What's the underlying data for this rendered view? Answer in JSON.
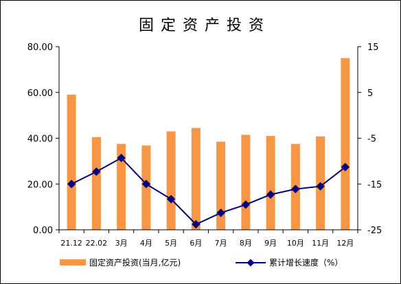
{
  "chart_data": {
    "type": "bar+line",
    "title": "固定资产投资",
    "categories": [
      "21.12",
      "22.02",
      "3月",
      "4月",
      "5月",
      "6月",
      "7月",
      "8月",
      "9月",
      "10月",
      "11月",
      "12月"
    ],
    "series": [
      {
        "name": "固定资产投资(当月,亿元)",
        "type": "bar",
        "axis": "left",
        "color": "#F79646",
        "values": [
          59.0,
          40.5,
          37.5,
          36.8,
          43.0,
          44.5,
          38.5,
          41.5,
          41.0,
          37.5,
          40.8,
          75.0
        ]
      },
      {
        "name": "累计增长速度（%）",
        "type": "line",
        "axis": "right",
        "color": "#000080",
        "values": [
          -15.0,
          -12.3,
          -9.3,
          -15.0,
          -18.3,
          -23.8,
          -21.3,
          -19.5,
          -17.3,
          -16.1,
          -15.5,
          -11.3
        ]
      }
    ],
    "y_left": {
      "ylim": [
        0,
        80
      ],
      "ticks": [
        "0.00",
        "20.00",
        "40.00",
        "60.00",
        "80.00"
      ]
    },
    "y_right": {
      "ylim": [
        -25,
        15
      ],
      "ticks": [
        "-25",
        "-15",
        "-5",
        "5",
        "15"
      ]
    },
    "grid": false,
    "legend": "bottom"
  }
}
